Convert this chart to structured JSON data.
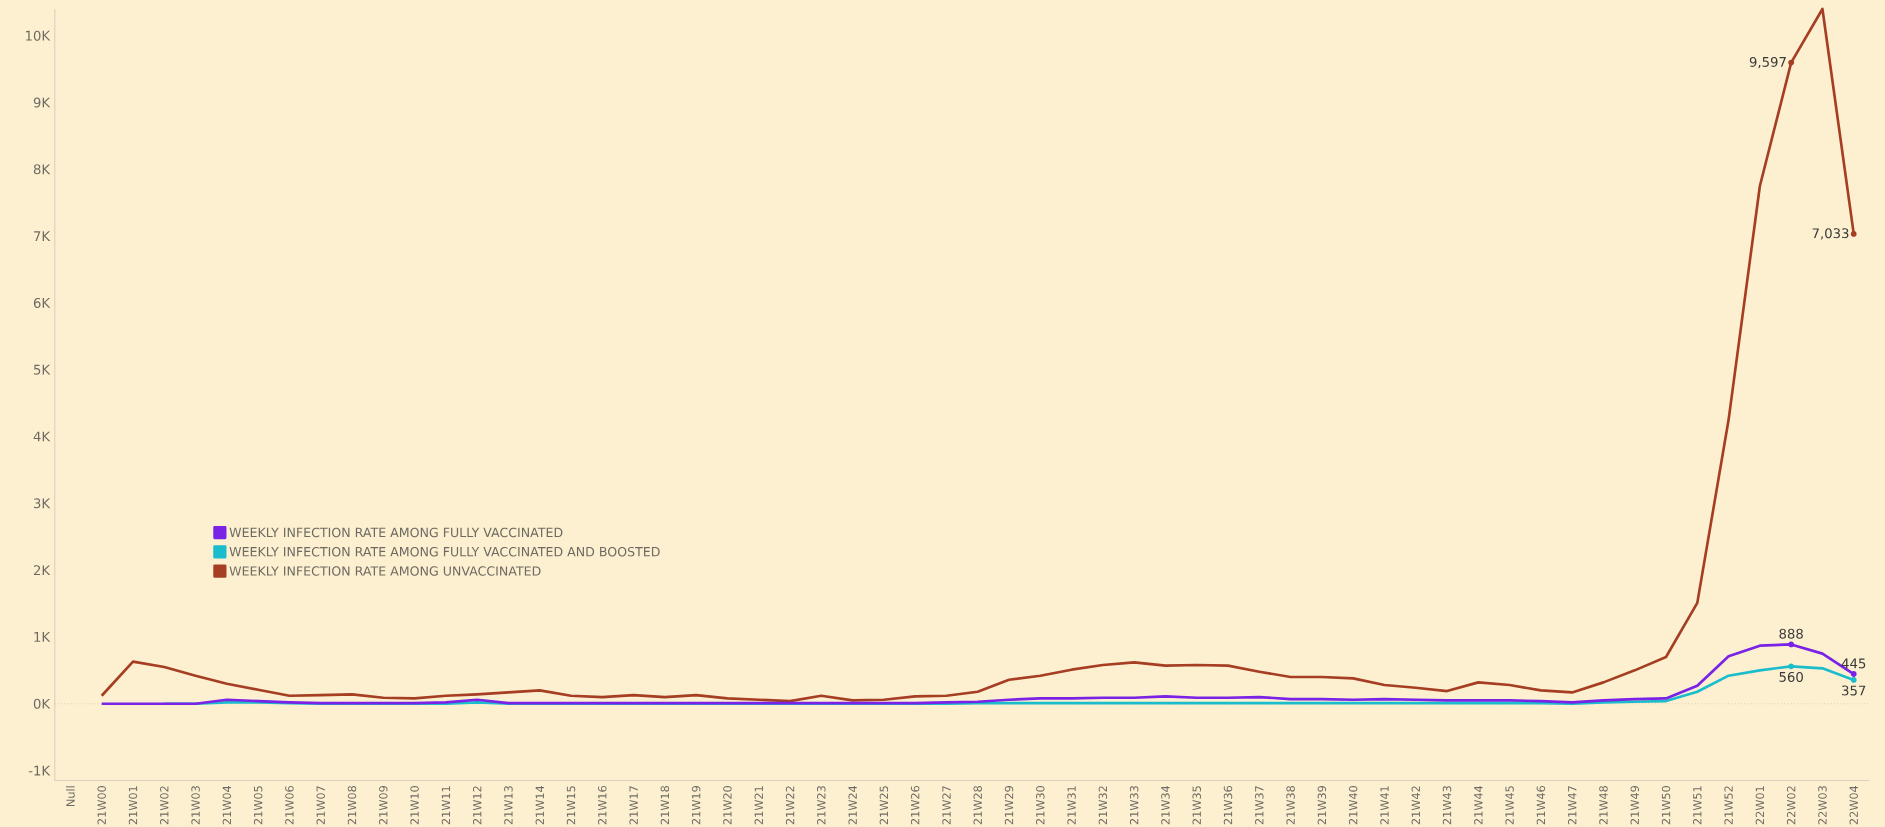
{
  "chart_data": {
    "type": "line",
    "categories": [
      "Null",
      "21W00",
      "21W01",
      "21W02",
      "21W03",
      "21W04",
      "21W05",
      "21W06",
      "21W07",
      "21W08",
      "21W09",
      "21W10",
      "21W11",
      "21W12",
      "21W13",
      "21W14",
      "21W15",
      "21W16",
      "21W17",
      "21W18",
      "21W19",
      "21W20",
      "21W21",
      "21W22",
      "21W23",
      "21W24",
      "21W25",
      "21W26",
      "21W27",
      "21W28",
      "21W29",
      "21W30",
      "21W31",
      "21W32",
      "21W33",
      "21W34",
      "21W35",
      "21W36",
      "21W37",
      "21W38",
      "21W39",
      "21W40",
      "21W41",
      "21W42",
      "21W43",
      "21W44",
      "21W45",
      "21W46",
      "21W47",
      "21W48",
      "21W49",
      "21W50",
      "21W51",
      "21W52",
      "22W01",
      "22W02",
      "22W03",
      "22W04"
    ],
    "series": [
      {
        "name": "WEEKLY INFECTION RATE AMONG FULLY VACCINATED",
        "color": "#7a22e6",
        "values": [
          null,
          0,
          0,
          0,
          0,
          60,
          40,
          20,
          10,
          10,
          10,
          10,
          20,
          60,
          10,
          10,
          10,
          10,
          10,
          10,
          10,
          10,
          10,
          10,
          10,
          10,
          10,
          10,
          20,
          30,
          60,
          80,
          80,
          90,
          90,
          110,
          90,
          90,
          100,
          70,
          70,
          60,
          70,
          60,
          50,
          50,
          50,
          40,
          20,
          50,
          70,
          80,
          270,
          710,
          870,
          888,
          750,
          445
        ],
        "value_labels": [
          null,
          null,
          null,
          null,
          null,
          null,
          null,
          null,
          null,
          null,
          null,
          null,
          null,
          null,
          null,
          null,
          null,
          null,
          null,
          null,
          null,
          null,
          null,
          null,
          null,
          null,
          null,
          null,
          null,
          null,
          null,
          null,
          null,
          null,
          null,
          null,
          null,
          null,
          null,
          null,
          null,
          null,
          null,
          null,
          null,
          null,
          null,
          null,
          null,
          null,
          null,
          null,
          null,
          null,
          null,
          "888",
          null,
          "445"
        ]
      },
      {
        "name": "WEEKLY INFECTION RATE AMONG FULLY VACCINATED AND BOOSTED",
        "color": "#1bbccc",
        "values": [
          null,
          null,
          null,
          0,
          0,
          20,
          20,
          10,
          0,
          0,
          0,
          0,
          0,
          20,
          0,
          0,
          0,
          0,
          0,
          0,
          0,
          0,
          0,
          0,
          0,
          0,
          0,
          0,
          0,
          10,
          10,
          10,
          10,
          10,
          10,
          10,
          10,
          10,
          10,
          10,
          10,
          10,
          10,
          10,
          10,
          10,
          10,
          10,
          0,
          20,
          30,
          40,
          180,
          420,
          500,
          560,
          530,
          357
        ],
        "value_labels": [
          null,
          null,
          null,
          null,
          null,
          null,
          null,
          null,
          null,
          null,
          null,
          null,
          null,
          null,
          null,
          null,
          null,
          null,
          null,
          null,
          null,
          null,
          null,
          null,
          null,
          null,
          null,
          null,
          null,
          null,
          null,
          null,
          null,
          null,
          null,
          null,
          null,
          null,
          null,
          null,
          null,
          null,
          null,
          null,
          null,
          null,
          null,
          null,
          null,
          null,
          null,
          null,
          null,
          null,
          null,
          "560",
          null,
          "357"
        ]
      },
      {
        "name": "WEEKLY INFECTION RATE AMONG UNVACCINATED",
        "color": "#a53e22",
        "values": [
          null,
          120,
          630,
          550,
          420,
          300,
          210,
          120,
          130,
          140,
          90,
          80,
          120,
          140,
          170,
          200,
          120,
          100,
          130,
          100,
          130,
          80,
          60,
          40,
          120,
          50,
          60,
          110,
          120,
          180,
          360,
          420,
          510,
          580,
          620,
          570,
          580,
          570,
          480,
          400,
          400,
          380,
          280,
          240,
          190,
          320,
          280,
          200,
          170,
          320,
          500,
          700,
          1510,
          4250,
          7750,
          9597,
          10400,
          7033
        ],
        "value_labels": [
          null,
          null,
          null,
          null,
          null,
          null,
          null,
          null,
          null,
          null,
          null,
          null,
          null,
          null,
          null,
          null,
          null,
          null,
          null,
          null,
          null,
          null,
          null,
          null,
          null,
          null,
          null,
          null,
          null,
          null,
          null,
          null,
          null,
          null,
          null,
          null,
          null,
          null,
          null,
          null,
          null,
          null,
          null,
          null,
          null,
          null,
          null,
          null,
          null,
          null,
          null,
          null,
          null,
          null,
          null,
          "9,597",
          null,
          "7,033"
        ]
      }
    ],
    "ylim": [
      -1150,
      10400
    ],
    "yticks": [
      {
        "value": -1000,
        "label": "-1K"
      },
      {
        "value": 0,
        "label": "0K"
      },
      {
        "value": 1000,
        "label": "1K"
      },
      {
        "value": 2000,
        "label": "2K"
      },
      {
        "value": 3000,
        "label": "3K"
      },
      {
        "value": 4000,
        "label": "4K"
      },
      {
        "value": 5000,
        "label": "5K"
      },
      {
        "value": 6000,
        "label": "6K"
      },
      {
        "value": 7000,
        "label": "7K"
      },
      {
        "value": 8000,
        "label": "8K"
      },
      {
        "value": 9000,
        "label": "9K"
      },
      {
        "value": 10000,
        "label": "10K"
      }
    ],
    "ref_lines": [
      {
        "axis": "y",
        "value": 0,
        "color": "#b0a898",
        "line_style": "dotted"
      }
    ],
    "grid": false,
    "legend": "left"
  }
}
